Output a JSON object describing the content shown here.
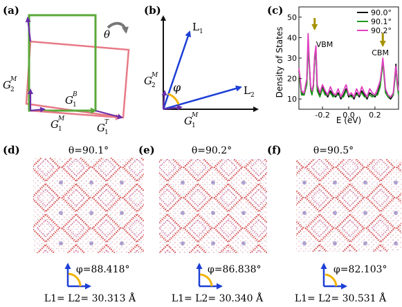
{
  "colors": {
    "purple": "#6a2ca8",
    "green": "#5aa83a",
    "pink": "#e77a86",
    "blue": "#1c3fd6",
    "gold": "#f2b300",
    "curve_black": "#111111",
    "curve_green": "#1f9a1f",
    "curve_magenta": "#e040c0",
    "arrow_olive": "#a79200",
    "moire_red": "#d43a3a",
    "moire_blue": "#3a5fd4"
  },
  "panels": {
    "a": {
      "label": "(a)",
      "theta": "θ",
      "icons": [
        "rotate-arrow-icon"
      ],
      "vectors": {
        "g2m": {
          "base": "G",
          "sup": "M",
          "sub": "2"
        },
        "g1m": {
          "base": "G",
          "sup": "M",
          "sub": "1"
        },
        "g1b": {
          "base": "G",
          "sup": "B",
          "sub": "1"
        },
        "g1t": {
          "base": "G",
          "sup": "T",
          "sub": "1"
        }
      }
    },
    "b": {
      "label": "(b)",
      "l1": {
        "base": "L",
        "sub": "1"
      },
      "l2": {
        "base": "L",
        "sub": "2"
      },
      "phi": "φ",
      "g2m": {
        "base": "G",
        "sup": "M",
        "sub": "2"
      },
      "g1m": {
        "base": "G",
        "sup": "M",
        "sub": "1"
      }
    },
    "c": {
      "label": "(c)",
      "vbm": "VBM",
      "cbm": "CBM"
    },
    "d": {
      "label": "(d)",
      "theta_text": "θ=90.1°",
      "phi_text": "φ=88.418°",
      "length_text": "L1= L2= 30.313 Å"
    },
    "e": {
      "label": "(e)",
      "theta_text": "θ=90.2°",
      "phi_text": "φ=86.838°",
      "length_text": "L1= L2= 30.340 Å"
    },
    "f": {
      "label": "(f)",
      "theta_text": "θ=90.5°",
      "phi_text": "φ=82.103°",
      "length_text": "L1= L2= 30.531 Å"
    }
  },
  "chart_data": {
    "type": "line",
    "xlabel": "E (eV)",
    "ylabel": "Density of States",
    "xlim": [
      -0.38,
      0.38
    ],
    "ylim": [
      5,
      55
    ],
    "xticks": [
      "-0.2",
      "0.0",
      "0.2"
    ],
    "xtick_values": [
      -0.2,
      0.0,
      0.2
    ],
    "yticks": [
      "10",
      "20",
      "30",
      "40",
      "50"
    ],
    "ytick_values": [
      10,
      20,
      30,
      40,
      50
    ],
    "legend_placement": "top-right",
    "annotations": [
      {
        "text": "VBM",
        "x": -0.26
      },
      {
        "text": "CBM",
        "x": 0.26
      }
    ],
    "x": [
      -0.38,
      -0.36,
      -0.34,
      -0.32,
      -0.31,
      -0.3,
      -0.29,
      -0.28,
      -0.27,
      -0.26,
      -0.25,
      -0.24,
      -0.22,
      -0.2,
      -0.18,
      -0.16,
      -0.14,
      -0.12,
      -0.1,
      -0.08,
      -0.06,
      -0.04,
      -0.02,
      0.0,
      0.02,
      0.04,
      0.06,
      0.08,
      0.1,
      0.12,
      0.14,
      0.16,
      0.18,
      0.2,
      0.22,
      0.24,
      0.25,
      0.26,
      0.27,
      0.28,
      0.3,
      0.32,
      0.34,
      0.35,
      0.36,
      0.37,
      0.38
    ],
    "series": [
      {
        "name": "90.0°",
        "color": "#111111",
        "values": [
          24,
          13,
          12,
          18,
          38,
          26,
          15,
          13,
          16,
          30,
          34,
          15,
          12,
          16,
          13,
          11,
          14,
          12,
          11,
          13,
          10,
          12,
          15,
          11,
          12,
          10,
          13,
          11,
          14,
          12,
          10,
          13,
          12,
          11,
          13,
          17,
          23,
          29,
          22,
          14,
          11,
          10,
          12,
          19,
          27,
          18,
          13
        ]
      },
      {
        "name": "90.1°",
        "color": "#1f9a1f",
        "values": [
          23,
          12,
          12,
          17,
          37,
          25,
          14,
          12,
          16,
          29,
          32,
          14,
          11,
          15,
          12,
          12,
          13,
          11,
          12,
          12,
          11,
          11,
          14,
          12,
          11,
          11,
          12,
          12,
          13,
          11,
          11,
          12,
          11,
          12,
          12,
          16,
          22,
          28,
          21,
          13,
          11,
          11,
          12,
          18,
          25,
          17,
          12
        ]
      },
      {
        "name": "90.2°",
        "color": "#e040c0",
        "values": [
          25,
          14,
          13,
          20,
          42,
          27,
          16,
          14,
          17,
          31,
          36,
          17,
          13,
          17,
          14,
          12,
          16,
          13,
          12,
          15,
          11,
          14,
          17,
          12,
          13,
          11,
          15,
          12,
          16,
          13,
          11,
          15,
          13,
          12,
          15,
          19,
          24,
          30,
          23,
          15,
          12,
          11,
          13,
          20,
          26,
          19,
          14
        ]
      }
    ]
  }
}
